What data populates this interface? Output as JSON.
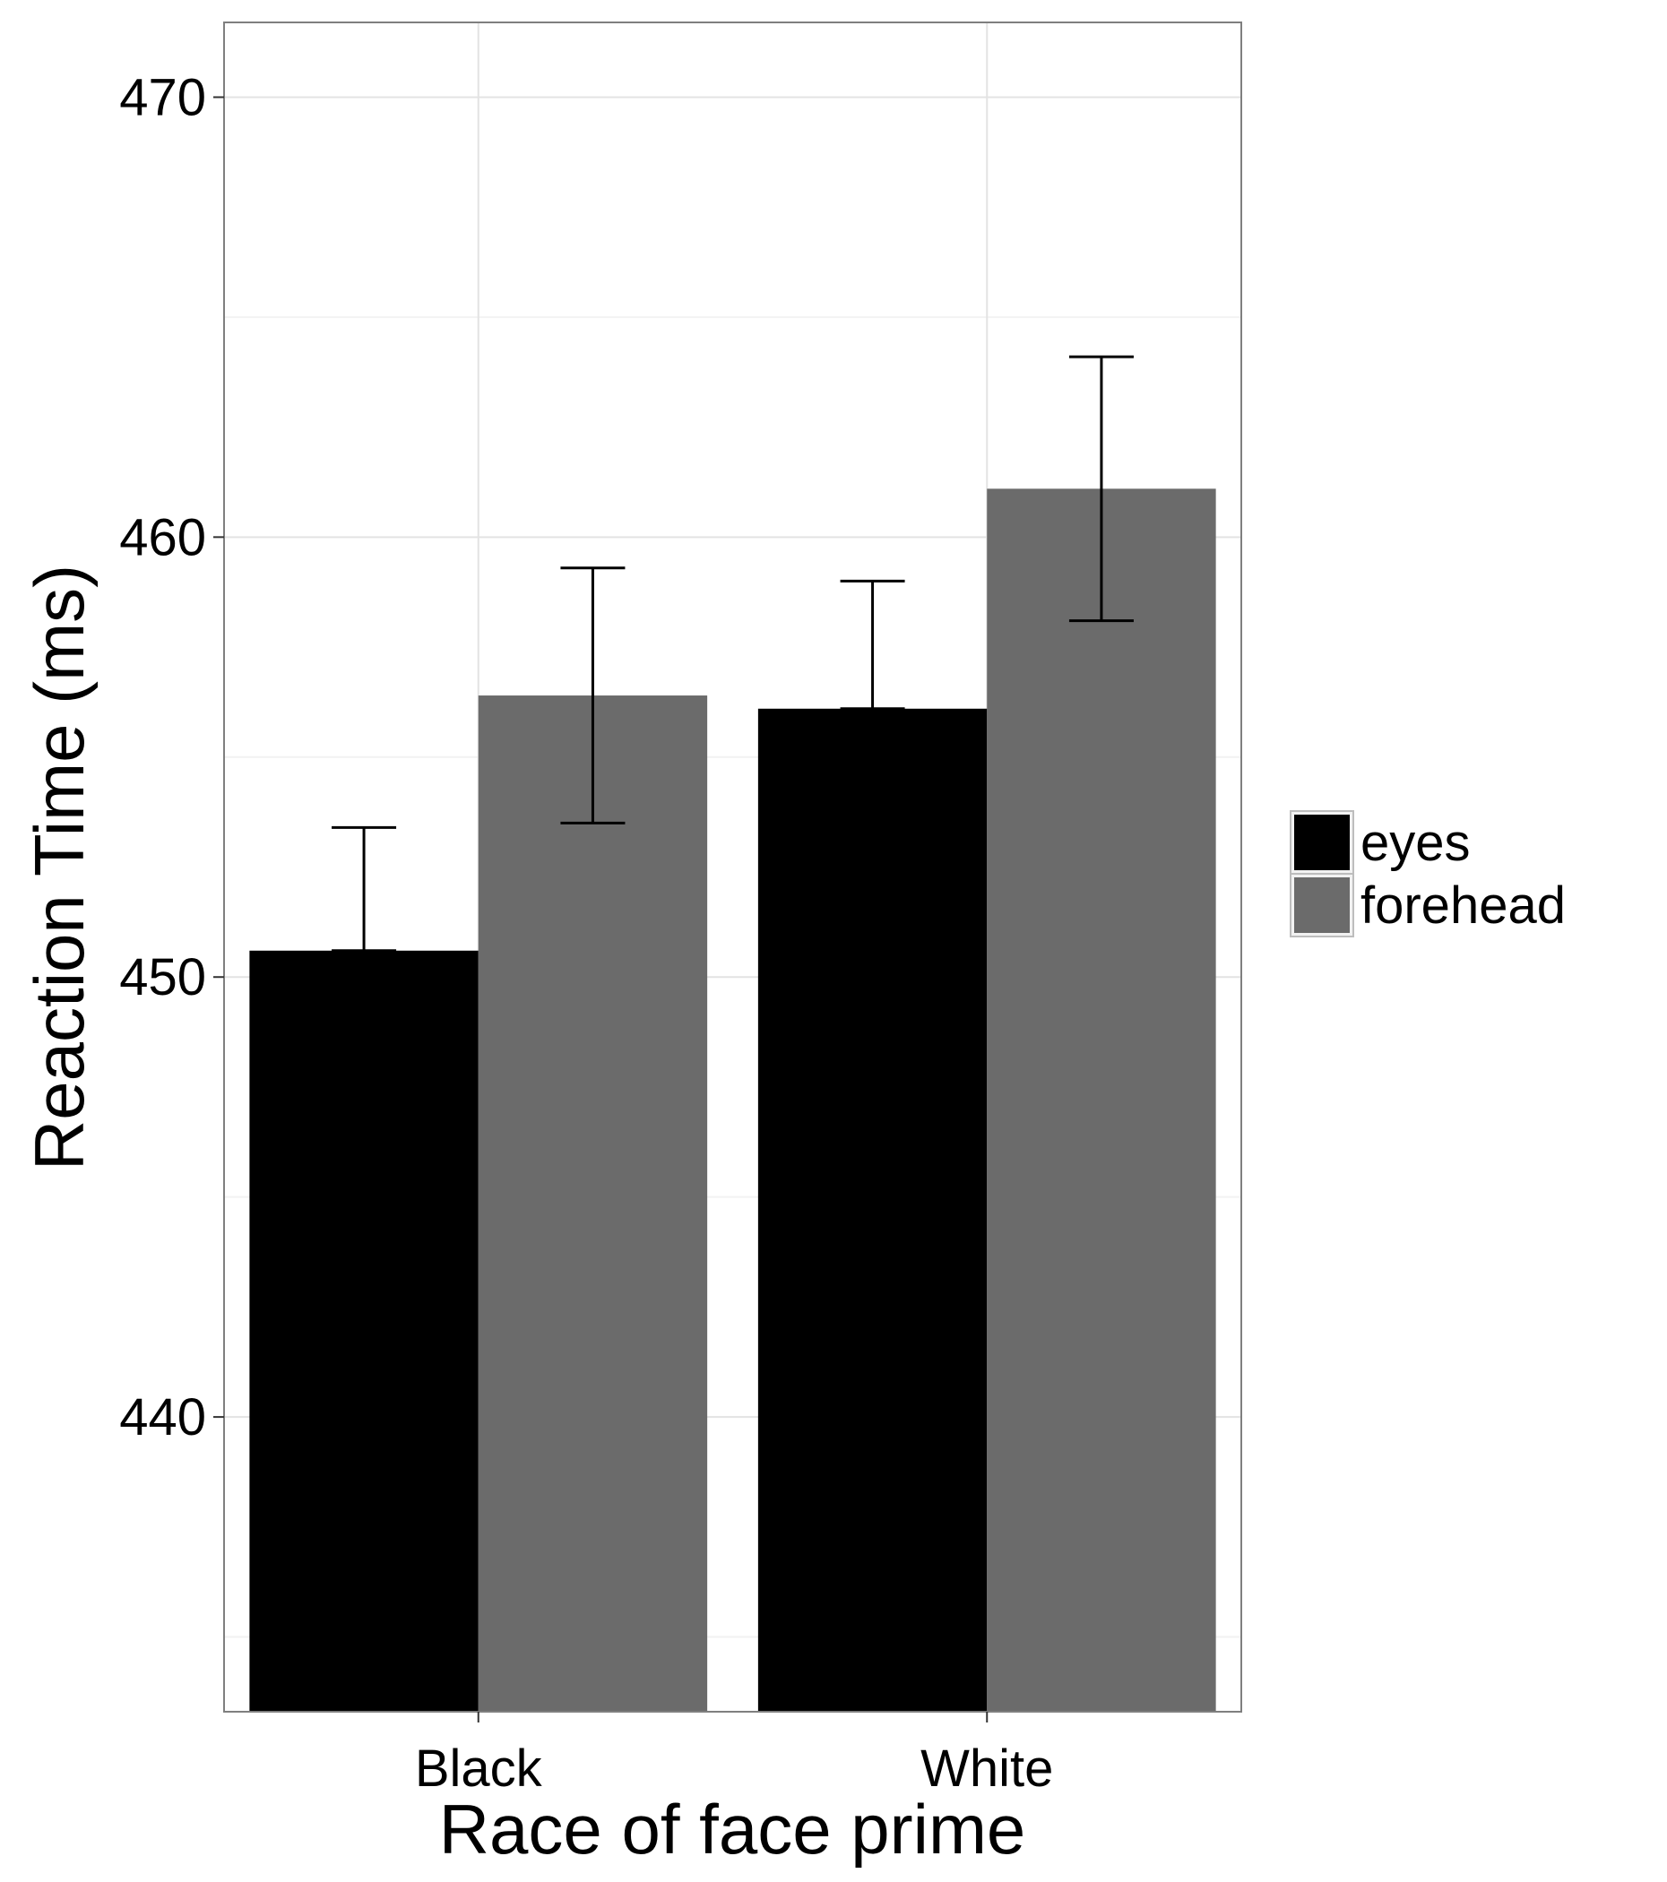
{
  "chart_data": {
    "type": "bar",
    "title": "",
    "xlabel": "Race of face prime",
    "ylabel": "Reaction Time (ms)",
    "categories": [
      "Black",
      "White"
    ],
    "series": [
      {
        "name": "eyes",
        "color": "#000000",
        "values": [
          450.6,
          456.1
        ],
        "error_low": [
          450.6,
          456.1
        ],
        "error_high": [
          453.4,
          459.0
        ]
      },
      {
        "name": "forehead",
        "color": "#6b6b6b",
        "values": [
          456.4,
          461.1
        ],
        "error_low": [
          453.5,
          458.1
        ],
        "error_high": [
          459.3,
          464.1
        ]
      }
    ],
    "ylim": [
      433.3,
      471.7
    ],
    "yticks": [
      440,
      450,
      460,
      470
    ],
    "grid": true,
    "legend_position": "right"
  }
}
